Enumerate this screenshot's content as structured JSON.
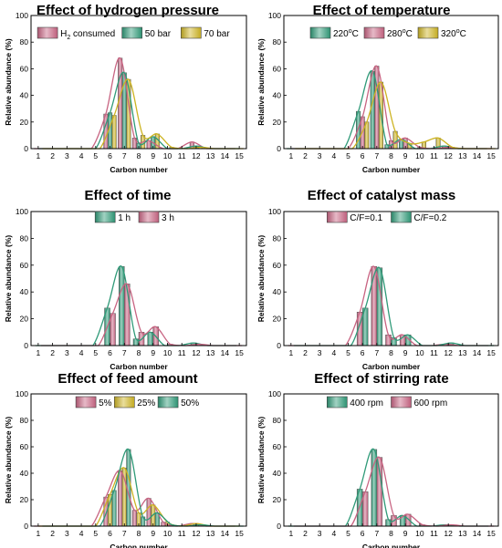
{
  "colors": {
    "pink": "#c86482",
    "teal": "#2f9a78",
    "yellow": "#cdb423"
  },
  "chart_data": [
    {
      "type": "bar",
      "title": "Effect of hydrogen pressure",
      "xlabel": "Carbon number",
      "ylabel": "Relative abundance (%)",
      "x": [
        1,
        2,
        3,
        4,
        5,
        6,
        7,
        8,
        9,
        10,
        11,
        12,
        13,
        14,
        15
      ],
      "ylim": [
        0,
        100
      ],
      "yticks": [
        0,
        20,
        40,
        60,
        80,
        100
      ],
      "grid": false,
      "legend": "top",
      "series": [
        {
          "name": "H",
          "name_sub": "2",
          "name_suffix": " consumed",
          "color": "pink",
          "values": [
            0,
            0,
            0,
            0,
            0,
            26,
            68,
            8,
            6,
            0,
            0,
            5,
            0,
            0,
            0
          ]
        },
        {
          "name": "50 bar",
          "color": "teal",
          "values": [
            0,
            0,
            0,
            0,
            0,
            27,
            57,
            4,
            9,
            0,
            0,
            2,
            0,
            0,
            0
          ]
        },
        {
          "name": "70 bar",
          "color": "yellow",
          "values": [
            0,
            0,
            0,
            0,
            0,
            25,
            52,
            10,
            11,
            1,
            0,
            1,
            0,
            0,
            0
          ]
        }
      ]
    },
    {
      "type": "bar",
      "title": "Effect of temperature",
      "xlabel": "Carbon number",
      "ylabel": "Relative abundance (%)",
      "x": [
        1,
        2,
        3,
        4,
        5,
        6,
        7,
        8,
        9,
        10,
        11,
        12,
        13,
        14,
        15
      ],
      "ylim": [
        0,
        100
      ],
      "yticks": [
        0,
        20,
        40,
        60,
        80,
        100
      ],
      "grid": false,
      "legend": "top",
      "series": [
        {
          "name": "220",
          "name_sup": "o",
          "name_suffix": "C",
          "color": "teal",
          "values": [
            0,
            0,
            0,
            0,
            0,
            28,
            58,
            3,
            7,
            0,
            0,
            2,
            0,
            0,
            0
          ]
        },
        {
          "name": "280",
          "name_sup": "o",
          "name_suffix": "C",
          "color": "pink",
          "values": [
            0,
            0,
            0,
            0,
            0,
            24,
            62,
            6,
            8,
            1,
            0,
            1,
            0,
            0,
            0
          ]
        },
        {
          "name": "320",
          "name_sup": "o",
          "name_suffix": "C",
          "color": "yellow",
          "values": [
            0,
            0,
            0,
            0,
            0,
            20,
            50,
            13,
            4,
            5,
            8,
            1,
            0,
            0,
            0
          ]
        }
      ]
    },
    {
      "type": "bar",
      "title": "Effect of time",
      "xlabel": "Carbon number",
      "ylabel": "Relative abundance (%)",
      "x": [
        1,
        2,
        3,
        4,
        5,
        6,
        7,
        8,
        9,
        10,
        11,
        12,
        13,
        14,
        15
      ],
      "ylim": [
        0,
        100
      ],
      "yticks": [
        0,
        20,
        40,
        60,
        80,
        100
      ],
      "grid": false,
      "legend": "top",
      "series": [
        {
          "name": "1 h",
          "color": "teal",
          "values": [
            0,
            0,
            0,
            0,
            0,
            28,
            59,
            5,
            10,
            0,
            0,
            2,
            0,
            0,
            0
          ]
        },
        {
          "name": "3 h",
          "color": "pink",
          "values": [
            0,
            0,
            0,
            0,
            0,
            24,
            46,
            10,
            14,
            1,
            0,
            1,
            0,
            0,
            0
          ]
        }
      ]
    },
    {
      "type": "bar",
      "title": "Effect of catalyst mass",
      "xlabel": "Carbon number",
      "ylabel": "Relative abundance (%)",
      "x": [
        1,
        2,
        3,
        4,
        5,
        6,
        7,
        8,
        9,
        10,
        11,
        12,
        13,
        14,
        15
      ],
      "ylim": [
        0,
        100
      ],
      "yticks": [
        0,
        20,
        40,
        60,
        80,
        100
      ],
      "grid": false,
      "legend": "top",
      "series": [
        {
          "name": "C/F=0.1",
          "color": "pink",
          "values": [
            0,
            0,
            0,
            0,
            0,
            25,
            59,
            8,
            8,
            0,
            0,
            1,
            0,
            0,
            0
          ]
        },
        {
          "name": "C/F=0.2",
          "color": "teal",
          "values": [
            0,
            0,
            0,
            0,
            0,
            28,
            58,
            6,
            8,
            0,
            0,
            2,
            0,
            0,
            0
          ]
        }
      ]
    },
    {
      "type": "bar",
      "title": "Effect of feed amount",
      "xlabel": "Carbon number",
      "ylabel": "Relative abundance (%)",
      "x": [
        1,
        2,
        3,
        4,
        5,
        6,
        7,
        8,
        9,
        10,
        11,
        12,
        13,
        14,
        15
      ],
      "ylim": [
        0,
        100
      ],
      "yticks": [
        0,
        20,
        40,
        60,
        80,
        100
      ],
      "grid": false,
      "legend": "top",
      "series": [
        {
          "name": "5%",
          "color": "pink",
          "values": [
            0,
            0,
            0,
            0,
            0,
            22,
            42,
            12,
            21,
            3,
            0,
            2,
            0,
            0,
            0
          ]
        },
        {
          "name": "25%",
          "color": "yellow",
          "values": [
            0,
            0,
            0,
            0,
            0,
            24,
            44,
            10,
            16,
            3,
            0,
            2,
            0,
            0,
            0
          ]
        },
        {
          "name": "50%",
          "color": "teal",
          "values": [
            0,
            0,
            0,
            0,
            0,
            27,
            58,
            7,
            10,
            1,
            0,
            1,
            0,
            0,
            0
          ]
        }
      ]
    },
    {
      "type": "bar",
      "title": "Effect of stirring rate",
      "xlabel": "Carbon number",
      "ylabel": "Relative abundance (%)",
      "x": [
        1,
        2,
        3,
        4,
        5,
        6,
        7,
        8,
        9,
        10,
        11,
        12,
        13,
        14,
        15
      ],
      "ylim": [
        0,
        100
      ],
      "yticks": [
        0,
        20,
        40,
        60,
        80,
        100
      ],
      "grid": false,
      "legend": "top",
      "series": [
        {
          "name": "400 rpm",
          "color": "teal",
          "values": [
            0,
            0,
            0,
            0,
            0,
            28,
            58,
            5,
            8,
            0,
            0,
            1,
            0,
            0,
            0
          ]
        },
        {
          "name": "600 rpm",
          "color": "pink",
          "values": [
            0,
            0,
            0,
            0,
            0,
            26,
            52,
            8,
            9,
            1,
            0,
            1,
            0,
            0,
            0
          ]
        }
      ]
    }
  ]
}
